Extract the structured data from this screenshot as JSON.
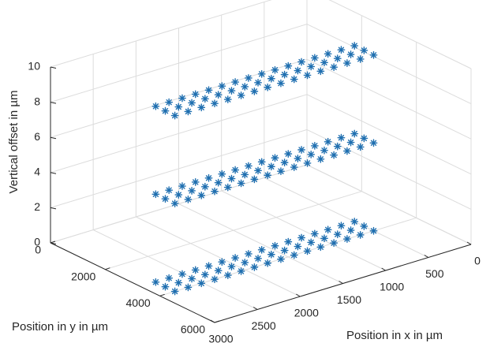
{
  "chart_data": {
    "type": "scatter3d",
    "marker": "asterisk",
    "series_color": "#1f6fb0",
    "grid": true,
    "xlabel": "Position in x in µm",
    "ylabel": "Position in y in µm",
    "zlabel": "Vertical offset in µm",
    "xlim": [
      0,
      3000
    ],
    "ylim": [
      0,
      6000
    ],
    "zlim": [
      0,
      10
    ],
    "x_ticks": [
      "0",
      "500",
      "1000",
      "1500",
      "2000",
      "2500",
      "3000"
    ],
    "y_ticks": [
      "0",
      "2000",
      "4000",
      "6000"
    ],
    "z_ticks": [
      "0",
      "2",
      "4",
      "6",
      "8",
      "10"
    ],
    "layers": [
      {
        "z": 10,
        "x_start": 500,
        "x_step": 155,
        "x_count": 16,
        "y_values": [
          3300,
          3650,
          4000
        ]
      },
      {
        "z": 5,
        "x_start": 500,
        "x_step": 155,
        "x_count": 16,
        "y_values": [
          3300,
          3650,
          4000
        ]
      },
      {
        "z": 0,
        "x_start": 500,
        "x_step": 155,
        "x_count": 16,
        "y_values": [
          3300,
          3650,
          4000
        ]
      }
    ]
  }
}
